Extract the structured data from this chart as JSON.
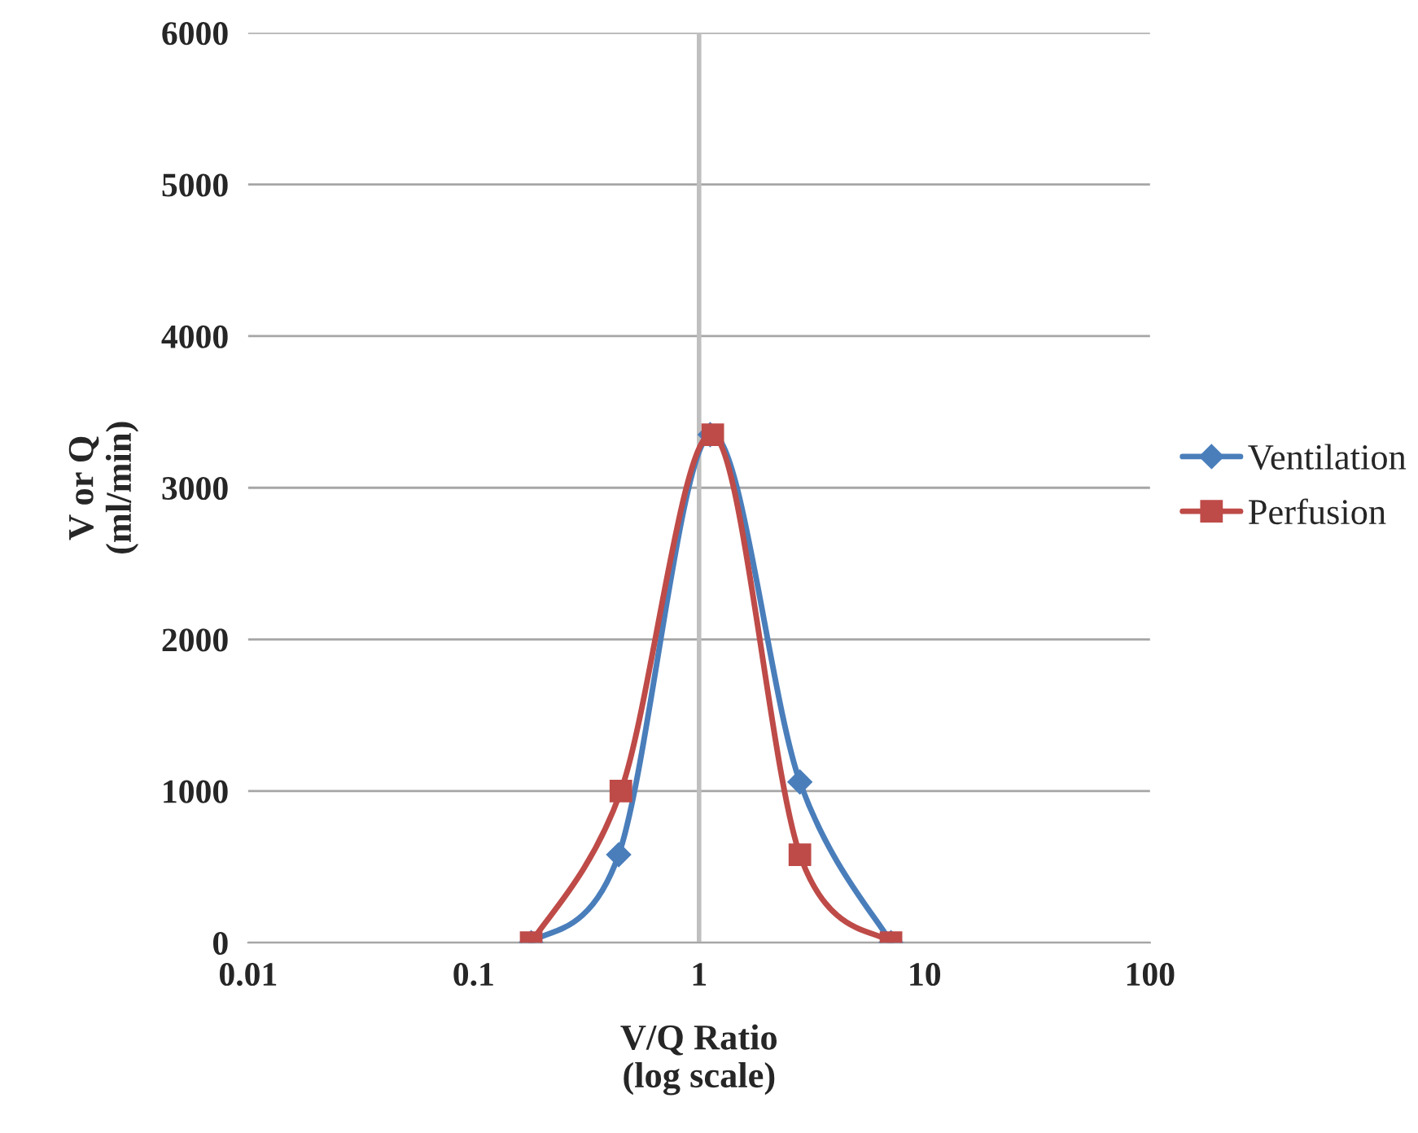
{
  "chart_data": {
    "type": "line",
    "xlabel": "V/Q Ratio\n(log scale)",
    "ylabel": "V or Q\n(ml/min)",
    "log": "x",
    "xlim": [
      0.01,
      100
    ],
    "xticks": [
      0.01,
      0.1,
      1,
      10,
      100
    ],
    "ylim": [
      0,
      6000
    ],
    "yticks": [
      0,
      1000,
      2000,
      3000,
      4000,
      5000,
      6000
    ],
    "grid": "y",
    "legend": "right",
    "ref_lines": [
      {
        "axis": "x",
        "value": 1,
        "color": "#bfbfbf"
      }
    ],
    "series": [
      {
        "name": "Ventilation",
        "color": "#4a7ebb",
        "marker": "diamond",
        "x": [
          0.18,
          0.44,
          1.12,
          2.8,
          7.1
        ],
        "values": [
          0,
          580,
          3350,
          1060,
          0
        ]
      },
      {
        "name": "Perfusion",
        "color": "#be4b48",
        "marker": "square",
        "x": [
          0.18,
          0.45,
          1.15,
          2.8,
          7.1
        ],
        "values": [
          0,
          1000,
          3350,
          580,
          0
        ]
      }
    ]
  }
}
